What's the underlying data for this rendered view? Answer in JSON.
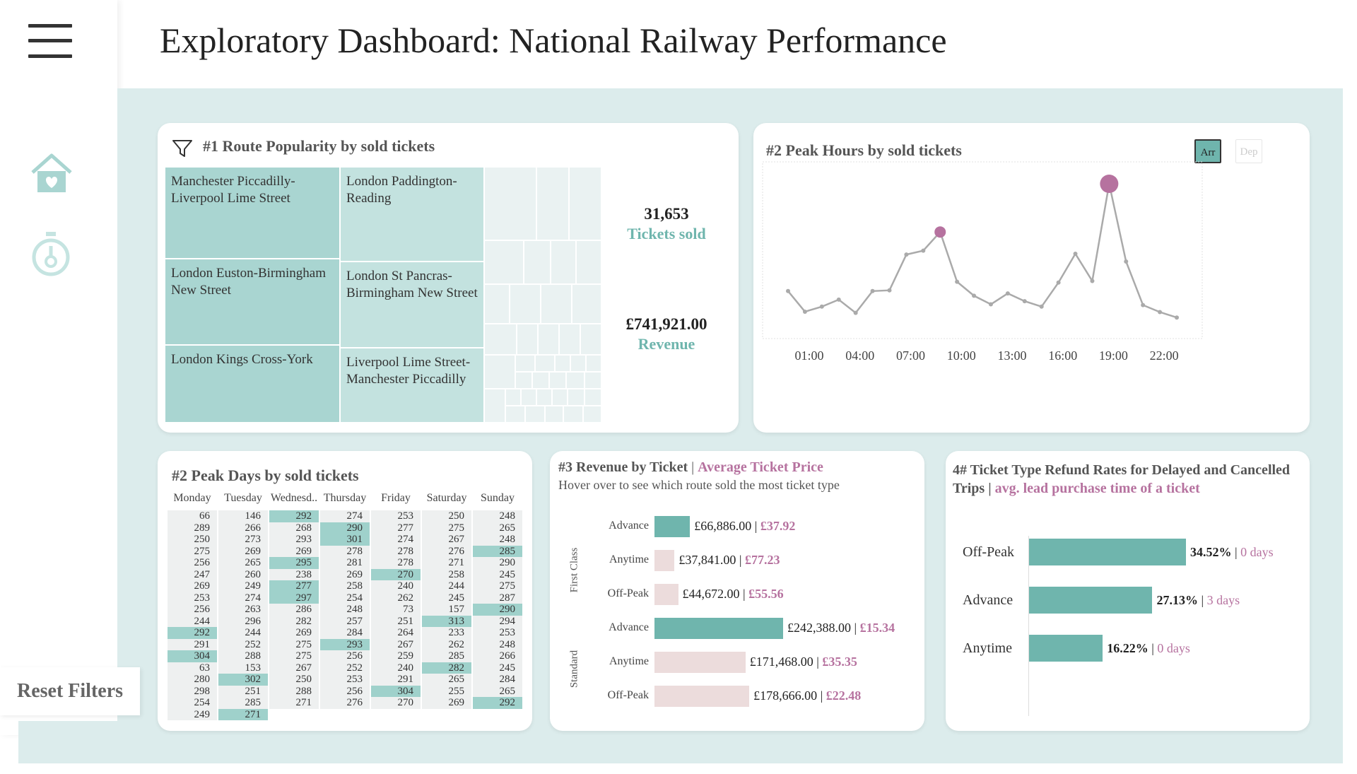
{
  "header": {
    "title": "Exploratory Dashboard: National Railway Performance"
  },
  "sidebar": {
    "icons": [
      "menu-icon",
      "home-icon",
      "timer-icon"
    ],
    "reset_label": "Reset Filters"
  },
  "colors": {
    "teal": "#6fb5ad",
    "teal_light": "#a9d5d1",
    "purple": "#b6729f",
    "pink": "#ecdcdc",
    "canvas": "#dcecec"
  },
  "routes": {
    "title": "#1 Route Popularity by sold tickets",
    "cells": [
      "Manchester Piccadilly-Liverpool Lime Street",
      "London Paddington-Reading",
      "London Euston-Birmingham New Street",
      "London St Pancras-Birmingham New Street",
      "London Kings Cross-York",
      "Liverpool Lime Street-Manchester Piccadilly"
    ],
    "tickets_value": "31,653",
    "tickets_label": "Tickets sold",
    "revenue_value": "£741,921.00",
    "revenue_label": "Revenue"
  },
  "hours": {
    "title": "#2  Peak Hours by sold tickets",
    "toggle_arr": "Arr",
    "toggle_dep": "Dep",
    "chart_data": {
      "type": "line",
      "x_ticks": [
        "01:00",
        "04:00",
        "07:00",
        "10:00",
        "13:00",
        "16:00",
        "19:00",
        "22:00"
      ],
      "values": [
        520,
        255,
        320,
        410,
        240,
        520,
        530,
        990,
        1040,
        1280,
        640,
        460,
        350,
        490,
        390,
        320,
        630,
        1000,
        650,
        1900,
        900,
        340,
        250,
        180
      ],
      "highlights": [
        9,
        19
      ],
      "ylim": [
        0,
        2000
      ],
      "grid": false
    }
  },
  "days": {
    "title": "#2 Peak Days by sold tickets",
    "headers": [
      "Monday",
      "Tuesday",
      "Wednesd..",
      "Thursday",
      "Friday",
      "Saturday",
      "Sunday"
    ],
    "columns": [
      [
        "66",
        "289",
        "250",
        "275",
        "256",
        "247",
        "269",
        "253",
        "256",
        "244",
        "292",
        "291",
        "304",
        "63",
        "280",
        "298",
        "254",
        "249"
      ],
      [
        "146",
        "266",
        "273",
        "269",
        "265",
        "260",
        "249",
        "274",
        "263",
        "296",
        "244",
        "252",
        "288",
        "153",
        "302",
        "251",
        "285",
        "271"
      ],
      [
        "292",
        "268",
        "293",
        "269",
        "295",
        "238",
        "277",
        "297",
        "286",
        "282",
        "269",
        "275",
        "275",
        "267",
        "250",
        "288",
        "271"
      ],
      [
        "274",
        "290",
        "301",
        "278",
        "281",
        "269",
        "258",
        "254",
        "248",
        "257",
        "284",
        "293",
        "256",
        "252",
        "253",
        "256",
        "276"
      ],
      [
        "253",
        "277",
        "274",
        "278",
        "278",
        "270",
        "240",
        "262",
        "73",
        "251",
        "264",
        "267",
        "259",
        "240",
        "291",
        "304",
        "270"
      ],
      [
        "250",
        "275",
        "267",
        "276",
        "271",
        "258",
        "244",
        "245",
        "157",
        "313",
        "233",
        "262",
        "285",
        "282",
        "265",
        "255",
        "269"
      ],
      [
        "248",
        "265",
        "248",
        "285",
        "290",
        "245",
        "275",
        "287",
        "290",
        "294",
        "253",
        "248",
        "266",
        "245",
        "284",
        "265",
        "292"
      ]
    ],
    "highlighted": [
      [
        10,
        12
      ],
      [
        14,
        17
      ],
      [
        0,
        4,
        6,
        7
      ],
      [
        1,
        2,
        11
      ],
      [
        5,
        15
      ],
      [
        9,
        13
      ],
      [
        3,
        8,
        16
      ]
    ]
  },
  "revenue": {
    "title": "#3 Revenue by Ticket",
    "title_accent": "Average Ticket Price",
    "subtitle": "Hover over to see which route sold the most ticket type",
    "groups": [
      "First Class",
      "Standard"
    ],
    "rows": [
      {
        "label": "Advance",
        "revenue": "£66,886.00",
        "avg": "£37.92",
        "value": 66886,
        "color": "#6fb5ad"
      },
      {
        "label": "Anytime",
        "revenue": "£37,841.00",
        "avg": "£77.23",
        "value": 37841,
        "color": "#ecdcdc"
      },
      {
        "label": "Off-Peak",
        "revenue": "£44,672.00",
        "avg": "£55.56",
        "value": 44672,
        "color": "#ecdcdc"
      },
      {
        "label": "Advance",
        "revenue": "£242,388.00",
        "avg": "£15.34",
        "value": 242388,
        "color": "#6fb5ad"
      },
      {
        "label": "Anytime",
        "revenue": "£171,468.00",
        "avg": "£35.35",
        "value": 171468,
        "color": "#ecdcdc"
      },
      {
        "label": "Off-Peak",
        "revenue": "£178,666.00",
        "avg": "£22.48",
        "value": 178666,
        "color": "#ecdcdc"
      }
    ]
  },
  "refund": {
    "title": "4# Ticket Type Refund Rates for Delayed and Cancelled Trips",
    "title_accent": "avg. lead purchase time of a ticket",
    "rows": [
      {
        "label": "Off-Peak",
        "rate": "34.52%",
        "lead": "0 days",
        "value": 34.52
      },
      {
        "label": "Advance",
        "rate": "27.13%",
        "lead": "3 days",
        "value": 27.13
      },
      {
        "label": "Anytime",
        "rate": "16.22%",
        "lead": "0 days",
        "value": 16.22
      }
    ]
  }
}
